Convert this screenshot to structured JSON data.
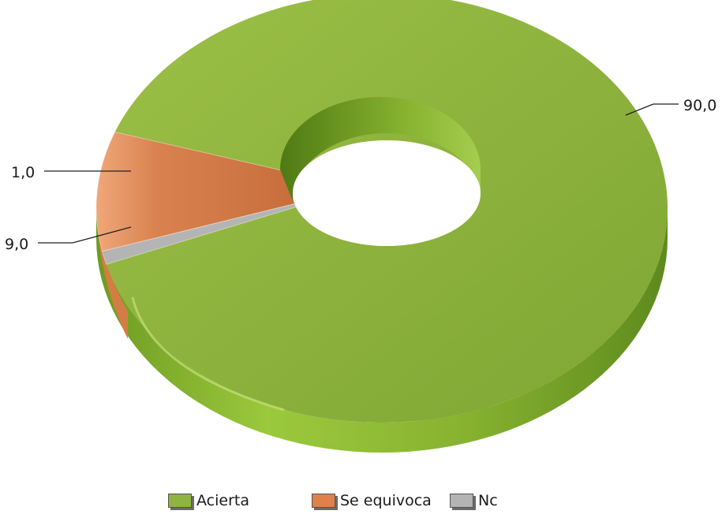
{
  "chart_data": {
    "type": "pie",
    "title": "",
    "categories": [
      "Acierta",
      "Se equivoca",
      "Nc"
    ],
    "values": [
      90.0,
      9.0,
      1.0
    ],
    "value_labels": [
      "90,0",
      "9,0",
      "1,0"
    ],
    "colors": [
      "#8fb43f",
      "#e0804a",
      "#b4b4b4"
    ],
    "legend": "bottom"
  }
}
